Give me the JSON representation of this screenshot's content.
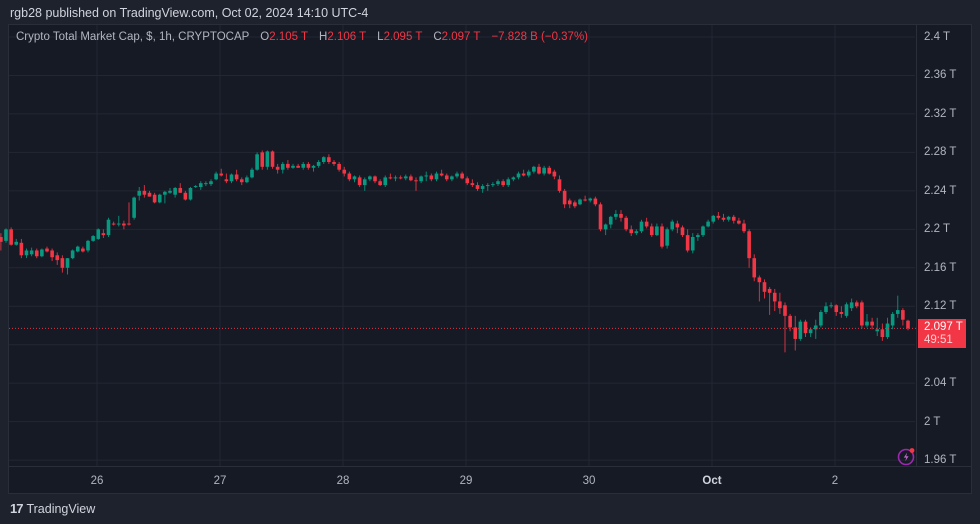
{
  "publish_line": "rgb28 published on TradingView.com, Oct 02, 2024 14:10 UTC-4",
  "legend": {
    "symbol": "Crypto Total Market Cap, $, 1h, CRYPTOCAP",
    "open_label": "O",
    "open": "2.105 T",
    "high_label": "H",
    "high": "2.106 T",
    "low_label": "L",
    "low": "2.095 T",
    "close_label": "C",
    "close": "2.097 T",
    "change": "−7.828 B (−0.37%)"
  },
  "price_tag": {
    "price": "2.097 T",
    "countdown": "49:51"
  },
  "footer": {
    "logo_icon": "tradingview-logo-icon",
    "brand": "TradingView"
  },
  "icons": {
    "flash": "lightning-bolt-icon"
  },
  "colors": {
    "up": "#089981",
    "down": "#f23645",
    "background": "#161a25",
    "page": "#1e222d",
    "grid": "#232733",
    "text": "#b2b5be",
    "accent_purple": "#9c27b0"
  },
  "chart_data": {
    "type": "candlestick",
    "title": "Crypto Total Market Cap, $, 1h, CRYPTOCAP",
    "xlabel": "",
    "ylabel": "",
    "x_ticks": [
      "26",
      "27",
      "28",
      "29",
      "30",
      "Oct",
      "2"
    ],
    "y_ticks": [
      "2.4 T",
      "2.36 T",
      "2.32 T",
      "2.28 T",
      "2.24 T",
      "2.2 T",
      "2.16 T",
      "2.12 T",
      "2.08 T",
      "2.04 T",
      "2 T",
      "1.96 T"
    ],
    "ylim": [
      1.95,
      2.41
    ],
    "grid": true,
    "last_price": 2.097,
    "ohlc": [
      [
        2.2,
        2.202,
        2.19,
        2.195
      ],
      [
        2.195,
        2.197,
        2.192,
        2.194
      ],
      [
        2.194,
        2.198,
        2.187,
        2.192
      ],
      [
        2.192,
        2.196,
        2.178,
        2.187
      ],
      [
        2.188,
        2.201,
        2.186,
        2.2
      ],
      [
        2.2,
        2.202,
        2.183,
        2.184
      ],
      [
        2.184,
        2.19,
        2.183,
        2.187
      ],
      [
        2.186,
        2.19,
        2.17,
        2.173
      ],
      [
        2.173,
        2.18,
        2.17,
        2.178
      ],
      [
        2.174,
        2.181,
        2.172,
        2.178
      ],
      [
        2.178,
        2.18,
        2.17,
        2.172
      ],
      [
        2.172,
        2.18,
        2.171,
        2.179
      ],
      [
        2.18,
        2.182,
        2.176,
        2.177
      ],
      [
        2.178,
        2.18,
        2.167,
        2.171
      ],
      [
        2.173,
        2.176,
        2.163,
        2.168
      ],
      [
        2.17,
        2.173,
        2.155,
        2.16
      ],
      [
        2.16,
        2.17,
        2.153,
        2.17
      ],
      [
        2.17,
        2.179,
        2.169,
        2.178
      ],
      [
        2.177,
        2.183,
        2.176,
        2.182
      ],
      [
        2.18,
        2.182,
        2.176,
        2.177
      ],
      [
        2.178,
        2.189,
        2.176,
        2.188
      ],
      [
        2.188,
        2.194,
        2.187,
        2.193
      ],
      [
        2.19,
        2.201,
        2.189,
        2.2
      ],
      [
        2.196,
        2.2,
        2.191,
        2.194
      ],
      [
        2.194,
        2.212,
        2.192,
        2.21
      ],
      [
        2.206,
        2.208,
        2.204,
        2.205
      ],
      [
        2.205,
        2.214,
        2.203,
        2.206
      ],
      [
        2.206,
        2.209,
        2.2,
        2.204
      ],
      [
        2.206,
        2.228,
        2.204,
        2.205
      ],
      [
        2.212,
        2.234,
        2.21,
        2.233
      ],
      [
        2.235,
        2.244,
        2.23,
        2.24
      ],
      [
        2.24,
        2.246,
        2.233,
        2.236
      ],
      [
        2.238,
        2.24,
        2.234,
        2.234
      ],
      [
        2.236,
        2.238,
        2.227,
        2.228
      ],
      [
        2.228,
        2.237,
        2.227,
        2.236
      ],
      [
        2.236,
        2.24,
        2.227,
        2.239
      ],
      [
        2.238,
        2.243,
        2.237,
        2.24
      ],
      [
        2.236,
        2.244,
        2.233,
        2.243
      ],
      [
        2.243,
        2.248,
        2.238,
        2.238
      ],
      [
        2.238,
        2.24,
        2.23,
        2.231
      ],
      [
        2.231,
        2.244,
        2.23,
        2.243
      ],
      [
        2.244,
        2.246,
        2.243,
        2.245
      ],
      [
        2.244,
        2.25,
        2.241,
        2.248
      ],
      [
        2.247,
        2.25,
        2.245,
        2.248
      ],
      [
        2.247,
        2.252,
        2.245,
        2.25
      ],
      [
        2.252,
        2.26,
        2.251,
        2.258
      ],
      [
        2.258,
        2.263,
        2.255,
        2.256
      ],
      [
        2.252,
        2.258,
        2.248,
        2.25
      ],
      [
        2.25,
        2.258,
        2.248,
        2.257
      ],
      [
        2.257,
        2.262,
        2.25,
        2.252
      ],
      [
        2.252,
        2.254,
        2.246,
        2.249
      ],
      [
        2.249,
        2.256,
        2.248,
        2.254
      ],
      [
        2.254,
        2.264,
        2.253,
        2.262
      ],
      [
        2.262,
        2.28,
        2.261,
        2.278
      ],
      [
        2.28,
        2.282,
        2.262,
        2.265
      ],
      [
        2.265,
        2.282,
        2.262,
        2.281
      ],
      [
        2.281,
        2.282,
        2.263,
        2.265
      ],
      [
        2.265,
        2.268,
        2.258,
        2.262
      ],
      [
        2.262,
        2.27,
        2.258,
        2.268
      ],
      [
        2.268,
        2.272,
        2.262,
        2.264
      ],
      [
        2.264,
        2.268,
        2.263,
        2.266
      ],
      [
        2.266,
        2.268,
        2.264,
        2.264
      ],
      [
        2.264,
        2.27,
        2.262,
        2.268
      ],
      [
        2.268,
        2.27,
        2.262,
        2.264
      ],
      [
        2.264,
        2.267,
        2.26,
        2.266
      ],
      [
        2.266,
        2.272,
        2.264,
        2.27
      ],
      [
        2.27,
        2.276,
        2.268,
        2.275
      ],
      [
        2.275,
        2.278,
        2.268,
        2.27
      ],
      [
        2.27,
        2.272,
        2.266,
        2.268
      ],
      [
        2.268,
        2.27,
        2.26,
        2.262
      ],
      [
        2.262,
        2.265,
        2.255,
        2.258
      ],
      [
        2.258,
        2.26,
        2.25,
        2.252
      ],
      [
        2.252,
        2.256,
        2.249,
        2.255
      ],
      [
        2.254,
        2.256,
        2.244,
        2.246
      ],
      [
        2.246,
        2.254,
        2.24,
        2.252
      ],
      [
        2.252,
        2.256,
        2.25,
        2.255
      ],
      [
        2.255,
        2.256,
        2.248,
        2.25
      ],
      [
        2.25,
        2.252,
        2.245,
        2.246
      ],
      [
        2.246,
        2.256,
        2.244,
        2.254
      ],
      [
        2.254,
        2.258,
        2.252,
        2.253
      ],
      [
        2.253,
        2.256,
        2.25,
        2.254
      ],
      [
        2.254,
        2.256,
        2.252,
        2.253
      ],
      [
        2.253,
        2.257,
        2.251,
        2.255
      ],
      [
        2.255,
        2.257,
        2.25,
        2.251
      ],
      [
        2.251,
        2.254,
        2.24,
        2.25
      ],
      [
        2.25,
        2.256,
        2.248,
        2.255
      ],
      [
        2.255,
        2.26,
        2.25,
        2.256
      ],
      [
        2.256,
        2.258,
        2.25,
        2.252
      ],
      [
        2.252,
        2.26,
        2.25,
        2.258
      ],
      [
        2.258,
        2.262,
        2.255,
        2.256
      ],
      [
        2.256,
        2.258,
        2.25,
        2.252
      ],
      [
        2.252,
        2.256,
        2.25,
        2.255
      ],
      [
        2.255,
        2.26,
        2.253,
        2.258
      ],
      [
        2.258,
        2.26,
        2.252,
        2.253
      ],
      [
        2.253,
        2.255,
        2.246,
        2.248
      ],
      [
        2.248,
        2.252,
        2.244,
        2.246
      ],
      [
        2.246,
        2.249,
        2.24,
        2.242
      ],
      [
        2.242,
        2.247,
        2.238,
        2.245
      ],
      [
        2.245,
        2.248,
        2.24,
        2.246
      ],
      [
        2.246,
        2.249,
        2.244,
        2.247
      ],
      [
        2.247,
        2.252,
        2.245,
        2.25
      ],
      [
        2.25,
        2.252,
        2.244,
        2.246
      ],
      [
        2.246,
        2.254,
        2.244,
        2.252
      ],
      [
        2.252,
        2.255,
        2.25,
        2.254
      ],
      [
        2.254,
        2.26,
        2.252,
        2.258
      ],
      [
        2.258,
        2.262,
        2.255,
        2.256
      ],
      [
        2.256,
        2.262,
        2.254,
        2.26
      ],
      [
        2.26,
        2.266,
        2.258,
        2.265
      ],
      [
        2.265,
        2.268,
        2.257,
        2.258
      ],
      [
        2.258,
        2.266,
        2.256,
        2.264
      ],
      [
        2.264,
        2.266,
        2.257,
        2.258
      ],
      [
        2.26,
        2.262,
        2.252,
        2.255
      ],
      [
        2.252,
        2.256,
        2.238,
        2.24
      ],
      [
        2.24,
        2.242,
        2.222,
        2.226
      ],
      [
        2.23,
        2.232,
        2.222,
        2.226
      ],
      [
        2.228,
        2.23,
        2.222,
        2.224
      ],
      [
        2.226,
        2.232,
        2.225,
        2.231
      ],
      [
        2.231,
        2.235,
        2.229,
        2.23
      ],
      [
        2.23,
        2.233,
        2.228,
        2.232
      ],
      [
        2.232,
        2.234,
        2.224,
        2.226
      ],
      [
        2.226,
        2.228,
        2.198,
        2.2
      ],
      [
        2.2,
        2.206,
        2.194,
        2.205
      ],
      [
        2.205,
        2.214,
        2.201,
        2.213
      ],
      [
        2.213,
        2.22,
        2.21,
        2.216
      ],
      [
        2.216,
        2.22,
        2.208,
        2.212
      ],
      [
        2.212,
        2.214,
        2.198,
        2.2
      ],
      [
        2.2,
        2.204,
        2.193,
        2.196
      ],
      [
        2.196,
        2.2,
        2.194,
        2.198
      ],
      [
        2.198,
        2.21,
        2.196,
        2.208
      ],
      [
        2.208,
        2.212,
        2.201,
        2.203
      ],
      [
        2.203,
        2.206,
        2.192,
        2.194
      ],
      [
        2.194,
        2.206,
        2.193,
        2.203
      ],
      [
        2.203,
        2.206,
        2.18,
        2.182
      ],
      [
        2.183,
        2.202,
        2.18,
        2.2
      ],
      [
        2.2,
        2.21,
        2.198,
        2.208
      ],
      [
        2.206,
        2.209,
        2.196,
        2.202
      ],
      [
        2.202,
        2.204,
        2.192,
        2.194
      ],
      [
        2.194,
        2.2,
        2.176,
        2.178
      ],
      [
        2.178,
        2.196,
        2.175,
        2.192
      ],
      [
        2.192,
        2.196,
        2.188,
        2.194
      ],
      [
        2.194,
        2.204,
        2.192,
        2.203
      ],
      [
        2.203,
        2.21,
        2.202,
        2.208
      ],
      [
        2.208,
        2.215,
        2.206,
        2.214
      ],
      [
        2.214,
        2.218,
        2.21,
        2.212
      ],
      [
        2.212,
        2.216,
        2.208,
        2.21
      ],
      [
        2.21,
        2.214,
        2.208,
        2.213
      ],
      [
        2.213,
        2.215,
        2.206,
        2.209
      ],
      [
        2.209,
        2.212,
        2.205,
        2.206
      ],
      [
        2.206,
        2.21,
        2.196,
        2.198
      ],
      [
        2.198,
        2.2,
        2.16,
        2.17
      ],
      [
        2.17,
        2.174,
        2.146,
        2.15
      ],
      [
        2.15,
        2.152,
        2.125,
        2.145
      ],
      [
        2.145,
        2.148,
        2.128,
        2.135
      ],
      [
        2.138,
        2.14,
        2.111,
        2.134
      ],
      [
        2.134,
        2.138,
        2.115,
        2.125
      ],
      [
        2.125,
        2.134,
        2.112,
        2.118
      ],
      [
        2.121,
        2.124,
        2.072,
        2.11
      ],
      [
        2.11,
        2.112,
        2.094,
        2.098
      ],
      [
        2.098,
        2.11,
        2.074,
        2.086
      ],
      [
        2.086,
        2.106,
        2.084,
        2.104
      ],
      [
        2.104,
        2.106,
        2.088,
        2.092
      ],
      [
        2.092,
        2.098,
        2.088,
        2.096
      ],
      [
        2.096,
        2.106,
        2.086,
        2.1
      ],
      [
        2.1,
        2.116,
        2.098,
        2.114
      ],
      [
        2.114,
        2.124,
        2.112,
        2.12
      ],
      [
        2.12,
        2.124,
        2.118,
        2.121
      ],
      [
        2.121,
        2.122,
        2.11,
        2.114
      ],
      [
        2.114,
        2.12,
        2.108,
        2.112
      ],
      [
        2.11,
        2.124,
        2.108,
        2.122
      ],
      [
        2.118,
        2.128,
        2.115,
        2.124
      ],
      [
        2.124,
        2.126,
        2.118,
        2.12
      ],
      [
        2.124,
        2.126,
        2.097,
        2.1
      ],
      [
        2.1,
        2.112,
        2.098,
        2.104
      ],
      [
        2.104,
        2.108,
        2.096,
        2.1
      ],
      [
        2.094,
        2.108,
        2.089,
        2.096
      ],
      [
        2.096,
        2.102,
        2.084,
        2.088
      ],
      [
        2.088,
        2.108,
        2.086,
        2.102
      ],
      [
        2.1,
        2.114,
        2.096,
        2.112
      ],
      [
        2.112,
        2.131,
        2.108,
        2.116
      ],
      [
        2.116,
        2.118,
        2.1,
        2.106
      ],
      [
        2.105,
        2.106,
        2.095,
        2.097
      ]
    ]
  }
}
